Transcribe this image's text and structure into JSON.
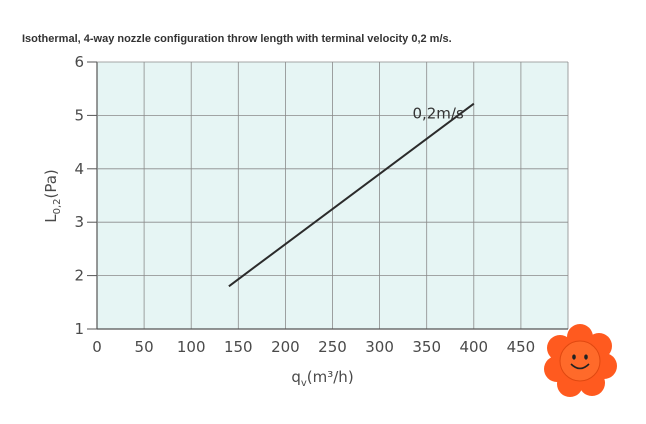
{
  "title": "Isothermal, 4-way nozzle configuration throw length with terminal velocity 0,2 m/s.",
  "chart_data": {
    "type": "line",
    "xlabel": {
      "main": "q",
      "sub": "v",
      "rest": "(m³/h)"
    },
    "ylabel": {
      "main": "L",
      "sub": "0,2",
      "rest": "(Pa)"
    },
    "xlim": [
      0,
      500
    ],
    "ylim": [
      1,
      6
    ],
    "xticks": [
      "0",
      "50",
      "100",
      "150",
      "200",
      "250",
      "300",
      "350",
      "400",
      "450"
    ],
    "yticks": [
      "1",
      "2",
      "3",
      "4",
      "5",
      "6"
    ],
    "grid": true,
    "series": [
      {
        "name": "0,2m/s",
        "x": [
          140,
          400
        ],
        "y": [
          1.8,
          5.22
        ]
      }
    ],
    "colors": {
      "plot_bg": "#e6f5f4",
      "grid": "#8a8a8a",
      "line": "#2b2b2b",
      "axis": "#555555"
    }
  },
  "mascot": {
    "icon": "smiling-flower-icon",
    "petal_color": "#ff5a1f",
    "face_color": "#ff6a2a"
  }
}
